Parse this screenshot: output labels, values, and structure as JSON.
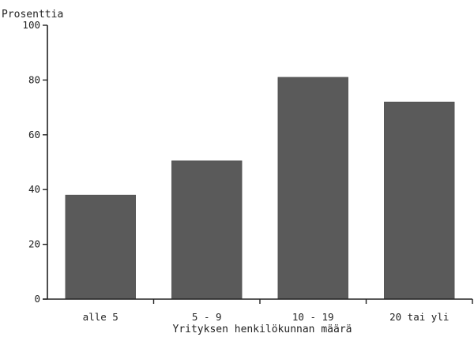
{
  "chart_data": {
    "type": "bar",
    "title": "",
    "ylabel": "Prosenttia",
    "xlabel": "Yrityksen henkilökunnan määrä",
    "categories": [
      "alle 5",
      "5 - 9",
      "10 - 19",
      "20 tai yli"
    ],
    "values": [
      38,
      50.5,
      81,
      72
    ],
    "ylim": [
      0,
      100
    ],
    "yticks": [
      0,
      20,
      40,
      60,
      80,
      100
    ],
    "grid": false,
    "legend": "none",
    "bar_color": "#5a5a5a",
    "axis_color": "#222222"
  }
}
